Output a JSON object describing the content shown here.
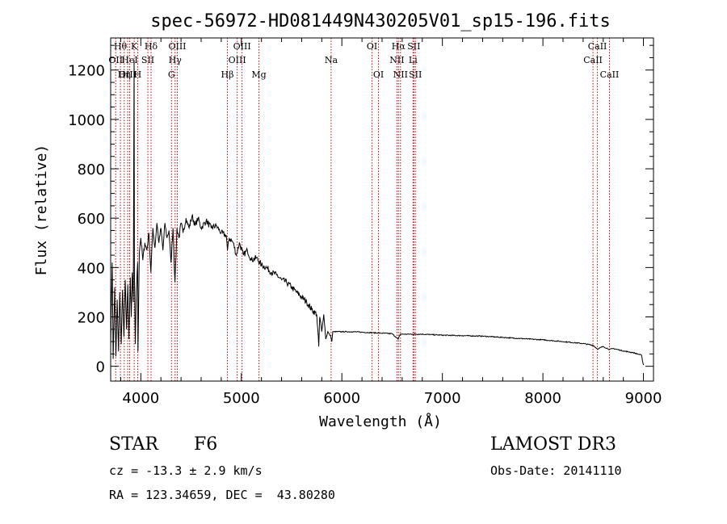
{
  "chart_data": {
    "type": "line",
    "title": "spec-56972-HD081449N430205V01_sp15-196.fits",
    "xlabel": "Wavelength (Å)",
    "ylabel": "Flux (relative)",
    "xlim": [
      3700,
      9100
    ],
    "ylim": [
      -60,
      1330
    ],
    "x_ticks": [
      4000,
      5000,
      6000,
      7000,
      8000,
      9000
    ],
    "y_ticks": [
      0,
      200,
      400,
      600,
      800,
      1000,
      1200
    ],
    "grid": false,
    "series": [
      {
        "name": "spectrum",
        "points": [
          [
            3700,
            80
          ],
          [
            3715,
            420
          ],
          [
            3725,
            30
          ],
          [
            3740,
            320
          ],
          [
            3752,
            40
          ],
          [
            3765,
            270
          ],
          [
            3778,
            60
          ],
          [
            3790,
            300
          ],
          [
            3805,
            90
          ],
          [
            3818,
            310
          ],
          [
            3832,
            120
          ],
          [
            3845,
            350
          ],
          [
            3858,
            150
          ],
          [
            3870,
            330
          ],
          [
            3882,
            110
          ],
          [
            3895,
            360
          ],
          [
            3905,
            200
          ],
          [
            3915,
            380
          ],
          [
            3925,
            260
          ],
          [
            3933,
            1240
          ],
          [
            3936,
            380
          ],
          [
            3945,
            90
          ],
          [
            3955,
            300
          ],
          [
            3968,
            420
          ],
          [
            3972,
            60
          ],
          [
            3985,
            460
          ],
          [
            4000,
            520
          ],
          [
            4020,
            430
          ],
          [
            4040,
            500
          ],
          [
            4060,
            470
          ],
          [
            4080,
            540
          ],
          [
            4100,
            380
          ],
          [
            4120,
            560
          ],
          [
            4140,
            480
          ],
          [
            4160,
            580
          ],
          [
            4180,
            500
          ],
          [
            4200,
            560
          ],
          [
            4220,
            470
          ],
          [
            4240,
            580
          ],
          [
            4260,
            520
          ],
          [
            4280,
            550
          ],
          [
            4300,
            420
          ],
          [
            4320,
            560
          ],
          [
            4340,
            340
          ],
          [
            4360,
            560
          ],
          [
            4380,
            520
          ],
          [
            4400,
            580
          ],
          [
            4420,
            540
          ],
          [
            4450,
            600
          ],
          [
            4480,
            560
          ],
          [
            4510,
            610
          ],
          [
            4540,
            570
          ],
          [
            4570,
            600
          ],
          [
            4600,
            560
          ],
          [
            4650,
            590
          ],
          [
            4700,
            560
          ],
          [
            4750,
            570
          ],
          [
            4800,
            540
          ],
          [
            4850,
            530
          ],
          [
            4862,
            470
          ],
          [
            4880,
            520
          ],
          [
            4920,
            500
          ],
          [
            4950,
            450
          ],
          [
            4980,
            500
          ],
          [
            5020,
            450
          ],
          [
            5060,
            470
          ],
          [
            5100,
            430
          ],
          [
            5150,
            440
          ],
          [
            5200,
            410
          ],
          [
            5250,
            400
          ],
          [
            5300,
            380
          ],
          [
            5350,
            370
          ],
          [
            5400,
            350
          ],
          [
            5450,
            340
          ],
          [
            5500,
            320
          ],
          [
            5550,
            300
          ],
          [
            5600,
            280
          ],
          [
            5650,
            260
          ],
          [
            5700,
            230
          ],
          [
            5750,
            210
          ],
          [
            5770,
            80
          ],
          [
            5780,
            200
          ],
          [
            5800,
            140
          ],
          [
            5820,
            210
          ],
          [
            5840,
            110
          ],
          [
            5860,
            140
          ],
          [
            5890,
            120
          ],
          [
            5900,
            100
          ],
          [
            5910,
            140
          ],
          [
            6000,
            140
          ],
          [
            6100,
            140
          ],
          [
            6200,
            138
          ],
          [
            6300,
            136
          ],
          [
            6400,
            134
          ],
          [
            6500,
            132
          ],
          [
            6560,
            110
          ],
          [
            6580,
            130
          ],
          [
            6700,
            130
          ],
          [
            6800,
            130
          ],
          [
            6900,
            128
          ],
          [
            7000,
            126
          ],
          [
            7200,
            124
          ],
          [
            7400,
            122
          ],
          [
            7600,
            117
          ],
          [
            7800,
            112
          ],
          [
            8000,
            107
          ],
          [
            8200,
            100
          ],
          [
            8400,
            92
          ],
          [
            8500,
            85
          ],
          [
            8542,
            70
          ],
          [
            8600,
            80
          ],
          [
            8662,
            68
          ],
          [
            8700,
            72
          ],
          [
            8800,
            62
          ],
          [
            8900,
            55
          ],
          [
            8980,
            45
          ],
          [
            9000,
            5
          ]
        ]
      }
    ],
    "lines": [
      {
        "w": 3750,
        "label": "OII",
        "row": 1
      },
      {
        "w": 3797,
        "label": "Hθ",
        "row": 0
      },
      {
        "w": 3835,
        "label": "Hη",
        "row": 2
      },
      {
        "w": 3869,
        "label": "OIII",
        "row": 2
      },
      {
        "w": 3889,
        "label": "HeI",
        "row": 1
      },
      {
        "w": 3934,
        "label": "K",
        "row": 0
      },
      {
        "w": 3969,
        "label": "H",
        "row": 2
      },
      {
        "w": 4070,
        "label": "SII",
        "row": 1
      },
      {
        "w": 4102,
        "label": "Hδ",
        "row": 0
      },
      {
        "w": 4305,
        "label": "G",
        "row": 2
      },
      {
        "w": 4341,
        "label": "Hγ",
        "row": 1
      },
      {
        "w": 4363,
        "label": "OIII",
        "row": 0
      },
      {
        "w": 4861,
        "label": "Hβ",
        "row": 2
      },
      {
        "w": 4959,
        "label": "OIII",
        "row": 1
      },
      {
        "w": 5007,
        "label": "OIII",
        "row": 0
      },
      {
        "w": 5175,
        "label": "Mg",
        "row": 2
      },
      {
        "w": 5893,
        "label": "Na",
        "row": 1
      },
      {
        "w": 6300,
        "label": "OI",
        "row": 0
      },
      {
        "w": 6364,
        "label": "OI",
        "row": 2
      },
      {
        "w": 6548,
        "label": "NII",
        "row": 1
      },
      {
        "w": 6563,
        "label": "Hα",
        "row": 0
      },
      {
        "w": 6583,
        "label": "NII",
        "row": 2
      },
      {
        "w": 6708,
        "label": "Li",
        "row": 1
      },
      {
        "w": 6716,
        "label": "SII",
        "row": 0
      },
      {
        "w": 6731,
        "label": "SII",
        "row": 2
      },
      {
        "w": 8498,
        "label": "CaII",
        "row": 1
      },
      {
        "w": 8542,
        "label": "CaII",
        "row": 0
      },
      {
        "w": 8662,
        "label": "CaII",
        "row": 2
      }
    ]
  },
  "info": {
    "class": "STAR",
    "subclass": "F6",
    "survey": "LAMOST DR3",
    "cz": "cz = -13.3 ± 2.9 km/s",
    "obs_date": "Obs-Date: 20141110",
    "radec": "RA = 123.34659, DEC =  43.80280"
  },
  "colors": {
    "spectrum": "#000000",
    "lines": "#cc0000",
    "axes": "#000000"
  }
}
